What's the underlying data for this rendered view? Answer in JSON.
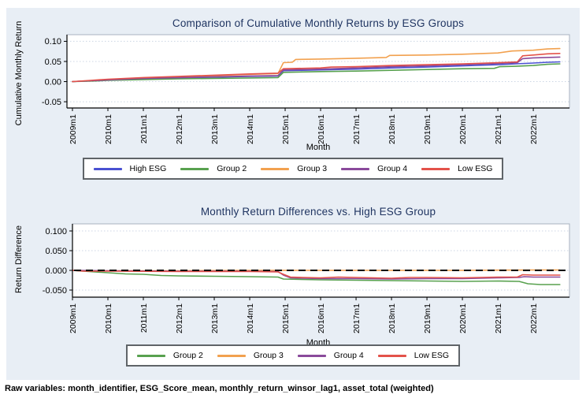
{
  "figure": {
    "background": "#e8eef5",
    "footer_note": "Raw variables: month_identifier, ESG_Score_mean, monthly_return_winsor_lag1, asset_total (weighted)"
  },
  "palette": {
    "title_navy": "#1f3461",
    "grid": "#ccd6e4",
    "plot_border": "#a8b2c0",
    "axis": "#000000",
    "high_esg_blue": "#4a51d2",
    "group2_green": "#58a14f",
    "group3_orange": "#f2a14f",
    "group4_purple": "#8a4a9b",
    "low_esg_red": "#e3524a"
  },
  "chart_data": [
    {
      "type": "line",
      "title": "Comparison of Cumulative Monthly Returns by ESG Groups",
      "xlabel": "Month",
      "ylabel": "Cumulative Monthly Return",
      "grid": true,
      "legend_position": "bottom",
      "xlim": [
        2008.845,
        2023.02
      ],
      "ylim": [
        -0.0655,
        0.1165
      ],
      "xtick_values": [
        2009,
        2010,
        2011,
        2012,
        2013,
        2014,
        2015,
        2016,
        2017,
        2018,
        2019,
        2020,
        2021,
        2022
      ],
      "xtick_labels": [
        "2009m1",
        "2010m1",
        "2011m1",
        "2012m1",
        "2013m1",
        "2014m1",
        "2015m1",
        "2016m1",
        "2017m1",
        "2018m1",
        "2019m1",
        "2020m1",
        "2021m1",
        "2022m1"
      ],
      "ytick_values": [
        0.1,
        0.05,
        0.0,
        -0.05
      ],
      "ytick_labels": [
        "0.10",
        "0.05",
        "0.00",
        "-0.05"
      ],
      "zero_line": false,
      "series": [
        {
          "name": "High ESG",
          "color": "#4a51d2",
          "points": [
            [
              2009,
              0
            ],
            [
              2009.5,
              0.002
            ],
            [
              2010,
              0.004
            ],
            [
              2010.5,
              0.006
            ],
            [
              2011,
              0.007
            ],
            [
              2012,
              0.009
            ],
            [
              2013,
              0.011
            ],
            [
              2014,
              0.013
            ],
            [
              2014.8,
              0.014
            ],
            [
              2014.95,
              0.027
            ],
            [
              2015.5,
              0.028
            ],
            [
              2016,
              0.029
            ],
            [
              2017,
              0.031
            ],
            [
              2018,
              0.034
            ],
            [
              2019,
              0.036
            ],
            [
              2020,
              0.039
            ],
            [
              2021,
              0.042
            ],
            [
              2021.5,
              0.044
            ],
            [
              2022,
              0.046
            ],
            [
              2022.4,
              0.048
            ],
            [
              2022.75,
              0.049
            ]
          ]
        },
        {
          "name": "Group 2",
          "color": "#58a14f",
          "points": [
            [
              2009,
              0
            ],
            [
              2009.5,
              0.001
            ],
            [
              2010,
              0.003
            ],
            [
              2011,
              0.005
            ],
            [
              2012,
              0.007
            ],
            [
              2013,
              0.008
            ],
            [
              2014,
              0.009
            ],
            [
              2014.8,
              0.01
            ],
            [
              2014.95,
              0.023
            ],
            [
              2016,
              0.025
            ],
            [
              2017,
              0.026
            ],
            [
              2018,
              0.028
            ],
            [
              2019,
              0.03
            ],
            [
              2020,
              0.032
            ],
            [
              2020.9,
              0.033
            ],
            [
              2021.05,
              0.037
            ],
            [
              2021.5,
              0.038
            ],
            [
              2022,
              0.04
            ],
            [
              2022.4,
              0.043
            ],
            [
              2022.75,
              0.044
            ]
          ]
        },
        {
          "name": "Group 3",
          "color": "#f2a14f",
          "points": [
            [
              2009,
              0
            ],
            [
              2009.5,
              0.002
            ],
            [
              2010,
              0.005
            ],
            [
              2011,
              0.009
            ],
            [
              2012,
              0.012
            ],
            [
              2013,
              0.015
            ],
            [
              2014,
              0.018
            ],
            [
              2014.8,
              0.02
            ],
            [
              2014.95,
              0.047
            ],
            [
              2015.2,
              0.048
            ],
            [
              2015.3,
              0.055
            ],
            [
              2016,
              0.056
            ],
            [
              2017,
              0.058
            ],
            [
              2017.85,
              0.06
            ],
            [
              2017.95,
              0.065
            ],
            [
              2019,
              0.066
            ],
            [
              2020,
              0.068
            ],
            [
              2021,
              0.071
            ],
            [
              2021.4,
              0.076
            ],
            [
              2022,
              0.078
            ],
            [
              2022.4,
              0.081
            ],
            [
              2022.75,
              0.082
            ]
          ]
        },
        {
          "name": "Group 4",
          "color": "#8a4a9b",
          "points": [
            [
              2009,
              0
            ],
            [
              2009.5,
              0.002
            ],
            [
              2010,
              0.004
            ],
            [
              2011,
              0.008
            ],
            [
              2012,
              0.01
            ],
            [
              2013,
              0.012
            ],
            [
              2014,
              0.014
            ],
            [
              2014.8,
              0.015
            ],
            [
              2014.95,
              0.029
            ],
            [
              2016,
              0.031
            ],
            [
              2017,
              0.034
            ],
            [
              2018,
              0.037
            ],
            [
              2019,
              0.039
            ],
            [
              2020,
              0.042
            ],
            [
              2021,
              0.045
            ],
            [
              2021.55,
              0.047
            ],
            [
              2021.7,
              0.057
            ],
            [
              2022,
              0.059
            ],
            [
              2022.75,
              0.061
            ]
          ]
        },
        {
          "name": "Low ESG",
          "color": "#e3524a",
          "points": [
            [
              2009,
              0
            ],
            [
              2009.5,
              0.003
            ],
            [
              2010,
              0.006
            ],
            [
              2011,
              0.01
            ],
            [
              2012,
              0.013
            ],
            [
              2013,
              0.016
            ],
            [
              2014,
              0.019
            ],
            [
              2014.8,
              0.021
            ],
            [
              2014.95,
              0.032
            ],
            [
              2016,
              0.034
            ],
            [
              2016.3,
              0.036
            ],
            [
              2017,
              0.037
            ],
            [
              2018,
              0.04
            ],
            [
              2019,
              0.042
            ],
            [
              2020,
              0.044
            ],
            [
              2021,
              0.047
            ],
            [
              2021.55,
              0.049
            ],
            [
              2021.7,
              0.064
            ],
            [
              2022,
              0.066
            ],
            [
              2022.4,
              0.069
            ],
            [
              2022.75,
              0.07
            ]
          ]
        }
      ]
    },
    {
      "type": "line",
      "title": "Monthly Return Differences vs. High ESG Group",
      "xlabel": "Month",
      "ylabel": "Return Difference",
      "grid": true,
      "legend_position": "bottom",
      "xlim": [
        2009.0,
        2023.02
      ],
      "ylim": [
        -0.068,
        0.118
      ],
      "xtick_values": [
        2009,
        2010,
        2011,
        2012,
        2013,
        2014,
        2015,
        2016,
        2017,
        2018,
        2019,
        2020,
        2021,
        2022
      ],
      "xtick_labels": [
        "2009m1",
        "2010m1",
        "2011m1",
        "2012m1",
        "2013m1",
        "2014m1",
        "2015m1",
        "2016m1",
        "2017m1",
        "2018m1",
        "2019m1",
        "2020m1",
        "2021m1",
        "2022m1"
      ],
      "ytick_values": [
        0.1,
        0.05,
        0.0,
        -0.05
      ],
      "ytick_labels": [
        "0.100",
        "0.050",
        "0.000",
        "-0.050"
      ],
      "zero_line": true,
      "series": [
        {
          "name": "Group 2",
          "color": "#58a14f",
          "points": [
            [
              2009,
              0
            ],
            [
              2009.3,
              -0.002
            ],
            [
              2010,
              -0.006
            ],
            [
              2010.5,
              -0.009
            ],
            [
              2011,
              -0.01
            ],
            [
              2011.5,
              -0.013
            ],
            [
              2012,
              -0.014
            ],
            [
              2013,
              -0.015
            ],
            [
              2014,
              -0.016
            ],
            [
              2014.8,
              -0.017
            ],
            [
              2014.95,
              -0.022
            ],
            [
              2016,
              -0.024
            ],
            [
              2017,
              -0.025
            ],
            [
              2018,
              -0.026
            ],
            [
              2019,
              -0.027
            ],
            [
              2020,
              -0.028
            ],
            [
              2021,
              -0.027
            ],
            [
              2021.6,
              -0.028
            ],
            [
              2021.85,
              -0.034
            ],
            [
              2022.2,
              -0.036
            ],
            [
              2022.75,
              -0.036
            ]
          ]
        },
        {
          "name": "Group 3",
          "color": "#f2a14f",
          "points": [
            [
              2009,
              0
            ],
            [
              2010,
              -0.001
            ],
            [
              2012,
              -0.001
            ],
            [
              2014,
              0
            ],
            [
              2016,
              0
            ],
            [
              2018,
              0
            ],
            [
              2020,
              0
            ],
            [
              2022,
              0.001
            ],
            [
              2022.75,
              0.001
            ]
          ]
        },
        {
          "name": "Group 4",
          "color": "#8a4a9b",
          "points": [
            [
              2009,
              0
            ],
            [
              2010,
              -0.001
            ],
            [
              2012,
              -0.002
            ],
            [
              2014,
              -0.002
            ],
            [
              2014.8,
              -0.003
            ],
            [
              2014.95,
              -0.012
            ],
            [
              2015.15,
              -0.019
            ],
            [
              2016,
              -0.021
            ],
            [
              2017,
              -0.021
            ],
            [
              2018,
              -0.022
            ],
            [
              2019,
              -0.021
            ],
            [
              2020,
              -0.021
            ],
            [
              2021,
              -0.019
            ],
            [
              2021.6,
              -0.018
            ],
            [
              2021.75,
              -0.016
            ],
            [
              2022,
              -0.017
            ],
            [
              2022.75,
              -0.017
            ]
          ]
        },
        {
          "name": "Low ESG",
          "color": "#e3524a",
          "points": [
            [
              2009,
              0
            ],
            [
              2009.3,
              -0.002
            ],
            [
              2010,
              -0.002
            ],
            [
              2012,
              -0.003
            ],
            [
              2014,
              -0.003
            ],
            [
              2014.8,
              -0.004
            ],
            [
              2014.95,
              -0.01
            ],
            [
              2015.15,
              -0.017
            ],
            [
              2015.5,
              -0.018
            ],
            [
              2016,
              -0.019
            ],
            [
              2016.5,
              -0.017
            ],
            [
              2017,
              -0.018
            ],
            [
              2018,
              -0.02
            ],
            [
              2018.5,
              -0.018
            ],
            [
              2019,
              -0.018
            ],
            [
              2020,
              -0.019
            ],
            [
              2021,
              -0.017
            ],
            [
              2021.55,
              -0.017
            ],
            [
              2021.7,
              -0.011
            ],
            [
              2022,
              -0.012
            ],
            [
              2022.75,
              -0.012
            ]
          ]
        }
      ]
    }
  ]
}
